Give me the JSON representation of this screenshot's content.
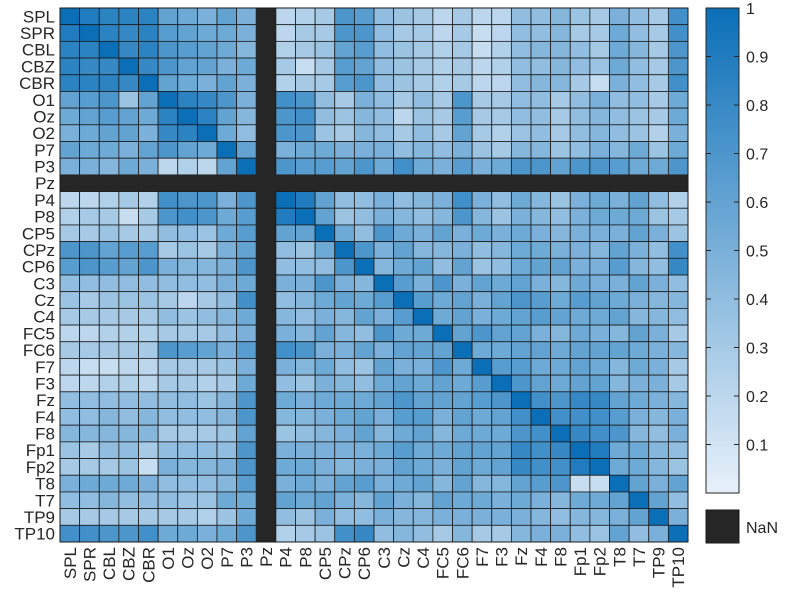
{
  "chart_data": {
    "type": "heatmap",
    "title": "",
    "xlabel": "",
    "ylabel": "",
    "row_labels": [
      "SPL",
      "SPR",
      "CBL",
      "CBZ",
      "CBR",
      "O1",
      "Oz",
      "O2",
      "P7",
      "P3",
      "Pz",
      "P4",
      "P8",
      "CP5",
      "CPz",
      "CP6",
      "C3",
      "Cz",
      "C4",
      "FC5",
      "FC6",
      "F7",
      "F3",
      "Fz",
      "F4",
      "F8",
      "Fp1",
      "Fp2",
      "T8",
      "T7",
      "TP9",
      "TP10"
    ],
    "col_labels": [
      "SPL",
      "SPR",
      "CBL",
      "CBZ",
      "CBR",
      "O1",
      "Oz",
      "O2",
      "P7",
      "P3",
      "Pz",
      "P4",
      "P8",
      "CP5",
      "CPz",
      "CP6",
      "C3",
      "Cz",
      "C4",
      "FC5",
      "FC6",
      "F7",
      "F3",
      "Fz",
      "F4",
      "F8",
      "Fp1",
      "Fp2",
      "T8",
      "T7",
      "TP9",
      "TP10"
    ],
    "nan_index": 10,
    "values": [
      [
        1.0,
        0.9,
        0.85,
        0.85,
        0.85,
        0.6,
        0.55,
        0.5,
        0.6,
        0.5,
        null,
        0.2,
        0.25,
        0.3,
        0.7,
        0.65,
        0.4,
        0.35,
        0.3,
        0.2,
        0.3,
        0.2,
        0.2,
        0.4,
        0.4,
        0.45,
        0.35,
        0.3,
        0.5,
        0.4,
        0.3,
        0.75
      ],
      [
        0.9,
        1.0,
        0.85,
        0.8,
        0.85,
        0.65,
        0.6,
        0.55,
        0.55,
        0.5,
        null,
        0.2,
        0.3,
        0.3,
        0.7,
        0.7,
        0.4,
        0.3,
        0.3,
        0.2,
        0.3,
        0.15,
        0.2,
        0.4,
        0.4,
        0.45,
        0.3,
        0.3,
        0.55,
        0.4,
        0.3,
        0.75
      ],
      [
        0.85,
        0.85,
        1.0,
        0.8,
        0.85,
        0.7,
        0.65,
        0.6,
        0.55,
        0.45,
        null,
        0.25,
        0.3,
        0.35,
        0.6,
        0.65,
        0.4,
        0.35,
        0.3,
        0.25,
        0.3,
        0.15,
        0.25,
        0.4,
        0.45,
        0.45,
        0.4,
        0.3,
        0.55,
        0.45,
        0.3,
        0.7
      ],
      [
        0.85,
        0.8,
        0.8,
        1.0,
        0.8,
        0.7,
        0.6,
        0.6,
        0.5,
        0.55,
        null,
        0.3,
        0.15,
        0.3,
        0.65,
        0.6,
        0.4,
        0.35,
        0.3,
        0.25,
        0.3,
        0.2,
        0.25,
        0.4,
        0.4,
        0.45,
        0.4,
        0.35,
        0.55,
        0.4,
        0.3,
        0.7
      ],
      [
        0.85,
        0.85,
        0.85,
        0.8,
        1.0,
        0.6,
        0.55,
        0.5,
        0.6,
        0.5,
        null,
        0.25,
        0.3,
        0.3,
        0.65,
        0.7,
        0.4,
        0.35,
        0.3,
        0.25,
        0.3,
        0.2,
        0.2,
        0.4,
        0.45,
        0.45,
        0.3,
        0.15,
        0.5,
        0.4,
        0.3,
        0.75
      ],
      [
        0.6,
        0.65,
        0.7,
        0.35,
        0.6,
        1.0,
        0.85,
        0.8,
        0.7,
        0.5,
        null,
        0.75,
        0.7,
        0.4,
        0.3,
        0.5,
        0.4,
        0.3,
        0.4,
        0.3,
        0.7,
        0.3,
        0.3,
        0.4,
        0.4,
        0.3,
        0.4,
        0.5,
        0.4,
        0.4,
        0.3,
        0.55
      ],
      [
        0.55,
        0.6,
        0.65,
        0.6,
        0.55,
        0.85,
        1.0,
        0.85,
        0.6,
        0.45,
        null,
        0.7,
        0.75,
        0.4,
        0.35,
        0.45,
        0.4,
        0.2,
        0.35,
        0.3,
        0.65,
        0.3,
        0.3,
        0.4,
        0.4,
        0.3,
        0.4,
        0.45,
        0.4,
        0.35,
        0.3,
        0.55
      ],
      [
        0.5,
        0.55,
        0.6,
        0.6,
        0.5,
        0.8,
        0.85,
        1.0,
        0.55,
        0.4,
        null,
        0.7,
        0.7,
        0.35,
        0.3,
        0.45,
        0.4,
        0.3,
        0.4,
        0.3,
        0.6,
        0.3,
        0.25,
        0.35,
        0.4,
        0.3,
        0.4,
        0.45,
        0.4,
        0.35,
        0.25,
        0.5
      ],
      [
        0.6,
        0.55,
        0.55,
        0.5,
        0.6,
        0.7,
        0.6,
        0.55,
        1.0,
        0.6,
        null,
        0.5,
        0.55,
        0.55,
        0.5,
        0.5,
        0.5,
        0.4,
        0.45,
        0.4,
        0.5,
        0.35,
        0.3,
        0.45,
        0.45,
        0.35,
        0.4,
        0.5,
        0.45,
        0.55,
        0.35,
        0.55
      ],
      [
        0.5,
        0.5,
        0.45,
        0.55,
        0.5,
        0.2,
        0.25,
        0.2,
        0.6,
        1.0,
        null,
        0.7,
        0.65,
        0.65,
        0.6,
        0.7,
        0.55,
        0.75,
        0.55,
        0.5,
        0.65,
        0.5,
        0.55,
        0.7,
        0.7,
        0.6,
        0.7,
        0.7,
        0.65,
        0.55,
        0.55,
        0.7
      ],
      [
        null,
        null,
        null,
        null,
        null,
        null,
        null,
        null,
        null,
        null,
        null,
        null,
        null,
        null,
        null,
        null,
        null,
        null,
        null,
        null,
        null,
        null,
        null,
        null,
        null,
        null,
        null,
        null,
        null,
        null,
        null,
        null
      ],
      [
        0.2,
        0.2,
        0.25,
        0.3,
        0.25,
        0.75,
        0.7,
        0.7,
        0.5,
        0.7,
        null,
        1.0,
        0.9,
        0.6,
        0.4,
        0.4,
        0.5,
        0.4,
        0.45,
        0.5,
        0.75,
        0.5,
        0.4,
        0.55,
        0.45,
        0.35,
        0.5,
        0.55,
        0.5,
        0.6,
        0.4,
        0.25
      ],
      [
        0.25,
        0.3,
        0.3,
        0.15,
        0.3,
        0.7,
        0.75,
        0.7,
        0.55,
        0.65,
        null,
        0.9,
        1.0,
        0.6,
        0.35,
        0.4,
        0.5,
        0.45,
        0.4,
        0.45,
        0.7,
        0.45,
        0.35,
        0.5,
        0.45,
        0.4,
        0.5,
        0.55,
        0.55,
        0.55,
        0.35,
        0.3
      ],
      [
        0.3,
        0.3,
        0.35,
        0.3,
        0.3,
        0.4,
        0.4,
        0.35,
        0.55,
        0.65,
        null,
        0.6,
        0.6,
        1.0,
        0.55,
        0.4,
        0.7,
        0.55,
        0.5,
        0.6,
        0.5,
        0.55,
        0.5,
        0.55,
        0.5,
        0.45,
        0.5,
        0.5,
        0.5,
        0.6,
        0.5,
        0.35
      ],
      [
        0.7,
        0.7,
        0.6,
        0.65,
        0.65,
        0.3,
        0.35,
        0.3,
        0.5,
        0.6,
        null,
        0.4,
        0.35,
        0.55,
        1.0,
        0.7,
        0.5,
        0.6,
        0.45,
        0.45,
        0.5,
        0.4,
        0.45,
        0.55,
        0.55,
        0.5,
        0.5,
        0.45,
        0.6,
        0.5,
        0.4,
        0.75
      ],
      [
        0.65,
        0.7,
        0.65,
        0.6,
        0.7,
        0.5,
        0.45,
        0.45,
        0.5,
        0.7,
        null,
        0.4,
        0.4,
        0.4,
        0.7,
        1.0,
        0.45,
        0.55,
        0.6,
        0.4,
        0.6,
        0.35,
        0.4,
        0.55,
        0.6,
        0.6,
        0.5,
        0.5,
        0.65,
        0.45,
        0.4,
        0.8
      ],
      [
        0.4,
        0.4,
        0.4,
        0.4,
        0.4,
        0.4,
        0.4,
        0.4,
        0.5,
        0.55,
        null,
        0.5,
        0.5,
        0.7,
        0.5,
        0.45,
        1.0,
        0.65,
        0.5,
        0.7,
        0.5,
        0.6,
        0.55,
        0.6,
        0.5,
        0.45,
        0.55,
        0.5,
        0.5,
        0.6,
        0.5,
        0.4
      ],
      [
        0.35,
        0.3,
        0.35,
        0.35,
        0.35,
        0.3,
        0.2,
        0.3,
        0.4,
        0.75,
        null,
        0.4,
        0.45,
        0.55,
        0.6,
        0.55,
        0.65,
        1.0,
        0.65,
        0.55,
        0.6,
        0.5,
        0.6,
        0.7,
        0.65,
        0.55,
        0.65,
        0.6,
        0.55,
        0.5,
        0.45,
        0.45
      ],
      [
        0.3,
        0.3,
        0.3,
        0.3,
        0.3,
        0.4,
        0.35,
        0.4,
        0.45,
        0.55,
        null,
        0.45,
        0.4,
        0.5,
        0.45,
        0.6,
        0.5,
        0.65,
        1.0,
        0.55,
        0.6,
        0.5,
        0.55,
        0.6,
        0.65,
        0.6,
        0.55,
        0.55,
        0.6,
        0.45,
        0.45,
        0.4
      ],
      [
        0.2,
        0.2,
        0.25,
        0.25,
        0.25,
        0.3,
        0.3,
        0.3,
        0.4,
        0.5,
        null,
        0.5,
        0.45,
        0.6,
        0.45,
        0.4,
        0.7,
        0.55,
        0.55,
        1.0,
        0.6,
        0.7,
        0.6,
        0.6,
        0.5,
        0.45,
        0.55,
        0.5,
        0.45,
        0.6,
        0.5,
        0.3
      ],
      [
        0.3,
        0.3,
        0.3,
        0.3,
        0.3,
        0.7,
        0.65,
        0.6,
        0.5,
        0.65,
        null,
        0.75,
        0.7,
        0.5,
        0.5,
        0.6,
        0.5,
        0.6,
        0.6,
        0.6,
        1.0,
        0.55,
        0.55,
        0.6,
        0.6,
        0.55,
        0.6,
        0.6,
        0.6,
        0.55,
        0.5,
        0.45
      ],
      [
        0.2,
        0.15,
        0.15,
        0.2,
        0.2,
        0.3,
        0.3,
        0.3,
        0.35,
        0.5,
        null,
        0.5,
        0.45,
        0.55,
        0.4,
        0.35,
        0.6,
        0.5,
        0.5,
        0.7,
        0.55,
        1.0,
        0.65,
        0.65,
        0.55,
        0.55,
        0.6,
        0.55,
        0.45,
        0.55,
        0.5,
        0.3
      ],
      [
        0.2,
        0.2,
        0.25,
        0.25,
        0.2,
        0.3,
        0.3,
        0.25,
        0.3,
        0.55,
        null,
        0.4,
        0.35,
        0.5,
        0.45,
        0.4,
        0.55,
        0.6,
        0.55,
        0.6,
        0.55,
        0.65,
        1.0,
        0.7,
        0.6,
        0.55,
        0.6,
        0.6,
        0.45,
        0.5,
        0.5,
        0.3
      ],
      [
        0.4,
        0.4,
        0.4,
        0.4,
        0.4,
        0.4,
        0.4,
        0.35,
        0.45,
        0.7,
        null,
        0.55,
        0.5,
        0.55,
        0.55,
        0.55,
        0.6,
        0.7,
        0.6,
        0.6,
        0.6,
        0.65,
        0.7,
        1.0,
        0.75,
        0.7,
        0.8,
        0.8,
        0.6,
        0.55,
        0.5,
        0.45
      ],
      [
        0.4,
        0.4,
        0.45,
        0.4,
        0.45,
        0.4,
        0.4,
        0.4,
        0.45,
        0.7,
        null,
        0.45,
        0.45,
        0.5,
        0.55,
        0.6,
        0.5,
        0.65,
        0.65,
        0.5,
        0.6,
        0.55,
        0.6,
        0.75,
        1.0,
        0.75,
        0.75,
        0.75,
        0.65,
        0.5,
        0.45,
        0.5
      ],
      [
        0.45,
        0.45,
        0.45,
        0.45,
        0.45,
        0.3,
        0.3,
        0.3,
        0.35,
        0.6,
        null,
        0.35,
        0.4,
        0.45,
        0.5,
        0.6,
        0.45,
        0.55,
        0.6,
        0.45,
        0.55,
        0.55,
        0.55,
        0.7,
        0.75,
        1.0,
        0.8,
        0.75,
        0.7,
        0.45,
        0.4,
        0.5
      ],
      [
        0.35,
        0.3,
        0.4,
        0.4,
        0.3,
        0.4,
        0.4,
        0.4,
        0.4,
        0.7,
        null,
        0.5,
        0.5,
        0.5,
        0.5,
        0.5,
        0.55,
        0.65,
        0.55,
        0.55,
        0.6,
        0.6,
        0.6,
        0.8,
        0.75,
        0.8,
        1.0,
        0.9,
        0.55,
        0.55,
        0.45,
        0.4
      ],
      [
        0.3,
        0.3,
        0.3,
        0.35,
        0.15,
        0.5,
        0.45,
        0.45,
        0.5,
        0.7,
        null,
        0.55,
        0.55,
        0.5,
        0.45,
        0.5,
        0.5,
        0.6,
        0.55,
        0.5,
        0.6,
        0.55,
        0.6,
        0.8,
        0.75,
        0.75,
        0.9,
        1.0,
        0.55,
        0.55,
        0.45,
        0.35
      ],
      [
        0.5,
        0.55,
        0.55,
        0.55,
        0.5,
        0.4,
        0.4,
        0.4,
        0.45,
        0.65,
        null,
        0.5,
        0.55,
        0.5,
        0.6,
        0.65,
        0.5,
        0.55,
        0.6,
        0.45,
        0.6,
        0.45,
        0.45,
        0.6,
        0.65,
        0.7,
        0.15,
        0.15,
        1.0,
        0.6,
        0.5,
        0.6
      ],
      [
        0.4,
        0.4,
        0.45,
        0.4,
        0.4,
        0.4,
        0.35,
        0.35,
        0.55,
        0.55,
        null,
        0.6,
        0.55,
        0.6,
        0.5,
        0.45,
        0.6,
        0.5,
        0.45,
        0.6,
        0.55,
        0.55,
        0.5,
        0.55,
        0.5,
        0.45,
        0.55,
        0.55,
        0.6,
        1.0,
        0.6,
        0.4
      ],
      [
        0.3,
        0.3,
        0.3,
        0.3,
        0.3,
        0.3,
        0.3,
        0.25,
        0.35,
        0.55,
        null,
        0.4,
        0.35,
        0.5,
        0.4,
        0.4,
        0.5,
        0.45,
        0.45,
        0.5,
        0.5,
        0.5,
        0.5,
        0.5,
        0.45,
        0.4,
        0.45,
        0.45,
        0.5,
        0.6,
        1.0,
        0.5
      ],
      [
        0.75,
        0.75,
        0.7,
        0.7,
        0.75,
        0.55,
        0.55,
        0.5,
        0.55,
        0.7,
        null,
        0.25,
        0.3,
        0.35,
        0.75,
        0.8,
        0.4,
        0.45,
        0.4,
        0.3,
        0.45,
        0.3,
        0.3,
        0.45,
        0.5,
        0.5,
        0.4,
        0.35,
        0.6,
        0.4,
        0.5,
        1.0
      ]
    ],
    "colormap": {
      "low": "#e8f1fa",
      "high": "#0b6fb8",
      "nan": "#262626",
      "grid": "#1a1a1a"
    },
    "colorbar": {
      "range": [
        0,
        1
      ],
      "ticks": [
        0.1,
        0.2,
        0.3,
        0.4,
        0.5,
        0.6,
        0.7,
        0.8,
        0.9,
        1
      ],
      "tick_labels": [
        "0.1",
        "0.2",
        "0.3",
        "0.4",
        "0.5",
        "0.6",
        "0.7",
        "0.8",
        "0.9",
        "1"
      ]
    },
    "nan_legend_label": "NaN"
  }
}
